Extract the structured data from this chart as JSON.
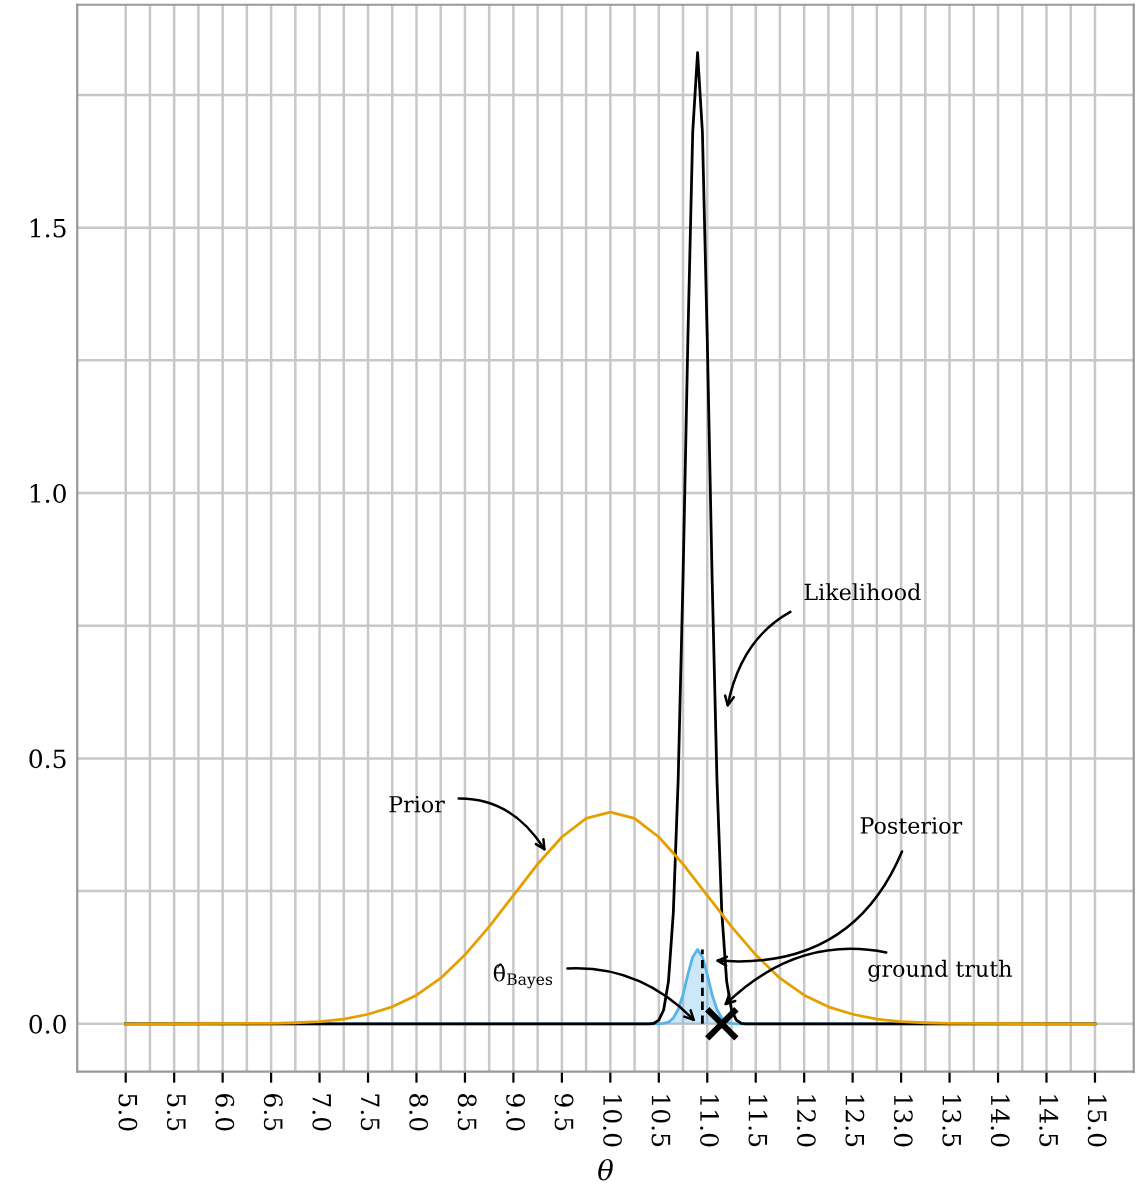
{
  "chart_data": {
    "type": "line",
    "xlabel": "θ",
    "xlim": [
      4.5,
      15.4
    ],
    "ylim": [
      -0.09,
      1.92
    ],
    "xticks": [
      {
        "value": 5,
        "label": "5.0"
      },
      {
        "value": 5.25,
        "label": null
      },
      {
        "value": 5.5,
        "label": "5.5"
      },
      {
        "value": 5.75,
        "label": null
      },
      {
        "value": 6,
        "label": "6.0"
      },
      {
        "value": 6.25,
        "label": null
      },
      {
        "value": 6.5,
        "label": "6.5"
      },
      {
        "value": 6.75,
        "label": null
      },
      {
        "value": 7,
        "label": "7.0"
      },
      {
        "value": 7.25,
        "label": null
      },
      {
        "value": 7.5,
        "label": "7.5"
      },
      {
        "value": 7.75,
        "label": null
      },
      {
        "value": 8,
        "label": "8.0"
      },
      {
        "value": 8.25,
        "label": null
      },
      {
        "value": 8.5,
        "label": "8.5"
      },
      {
        "value": 8.75,
        "label": null
      },
      {
        "value": 9,
        "label": "9.0"
      },
      {
        "value": 9.25,
        "label": null
      },
      {
        "value": 9.5,
        "label": "9.5"
      },
      {
        "value": 9.75,
        "label": null
      },
      {
        "value": 10,
        "label": "10.0"
      },
      {
        "value": 10.25,
        "label": null
      },
      {
        "value": 10.5,
        "label": "10.5"
      },
      {
        "value": 10.75,
        "label": null
      },
      {
        "value": 11,
        "label": "11.0"
      },
      {
        "value": 11.25,
        "label": null
      },
      {
        "value": 11.5,
        "label": "11.5"
      },
      {
        "value": 11.75,
        "label": null
      },
      {
        "value": 12,
        "label": "12.0"
      },
      {
        "value": 12.25,
        "label": null
      },
      {
        "value": 12.5,
        "label": "12.5"
      },
      {
        "value": 12.75,
        "label": null
      },
      {
        "value": 13,
        "label": "13.0"
      },
      {
        "value": 13.25,
        "label": null
      },
      {
        "value": 13.5,
        "label": "13.5"
      },
      {
        "value": 13.75,
        "label": null
      },
      {
        "value": 14,
        "label": "14.0"
      },
      {
        "value": 14.25,
        "label": null
      },
      {
        "value": 14.5,
        "label": "14.5"
      },
      {
        "value": 14.75,
        "label": null
      },
      {
        "value": 15,
        "label": "15.0"
      }
    ],
    "yticks": [
      {
        "value": 0,
        "label": "0.0"
      },
      {
        "value": 0.25,
        "label": null
      },
      {
        "value": 0.5,
        "label": "0.5"
      },
      {
        "value": 0.75,
        "label": null
      },
      {
        "value": 1,
        "label": "1.0"
      },
      {
        "value": 1.25,
        "label": null
      },
      {
        "value": 1.5,
        "label": "1.5"
      },
      {
        "value": 1.75,
        "label": null
      }
    ],
    "grid": true,
    "legend": false,
    "series": [
      {
        "color": "#e69f00",
        "x": [
          5,
          6.5,
          6.75,
          7,
          7.25,
          7.5,
          7.75,
          8,
          8.25,
          8.5,
          8.75,
          9,
          9.25,
          9.5,
          9.75,
          10,
          10.25,
          10.5,
          10.75,
          11,
          11.25,
          11.5,
          11.75,
          12,
          12.25,
          12.5,
          12.75,
          13,
          13.25,
          13.5,
          15
        ],
        "values": [
          0,
          0.001,
          0.002,
          0.004,
          0.009,
          0.018,
          0.032,
          0.054,
          0.086,
          0.13,
          0.183,
          0.242,
          0.301,
          0.352,
          0.387,
          0.399,
          0.387,
          0.352,
          0.301,
          0.242,
          0.183,
          0.13,
          0.086,
          0.054,
          0.032,
          0.018,
          0.009,
          0.004,
          0.002,
          0.001,
          0
        ]
      },
      {
        "type": "area",
        "color": "#56b4e9",
        "x": [
          5,
          10.5,
          10.55,
          10.6,
          10.65,
          10.7,
          10.75,
          10.8,
          10.85,
          10.9,
          10.95,
          11,
          11.05,
          11.1,
          11.15,
          11.2,
          11.25,
          11.3,
          15
        ],
        "values": [
          0,
          0,
          0.001,
          0.003,
          0.011,
          0.027,
          0.055,
          0.093,
          0.126,
          0.14,
          0.126,
          0.093,
          0.055,
          0.027,
          0.011,
          0.003,
          0.001,
          0,
          0
        ]
      },
      {
        "color": "#000000",
        "x": [
          5,
          10.4,
          10.45,
          10.5,
          10.55,
          10.6,
          10.65,
          10.7,
          10.75,
          10.8,
          10.85,
          10.9,
          10.95,
          11,
          11.05,
          11.1,
          11.15,
          11.2,
          11.25,
          11.3,
          11.35,
          11.4,
          15
        ],
        "values": [
          0,
          0,
          0.001,
          0.007,
          0.026,
          0.08,
          0.21,
          0.46,
          0.84,
          1.29,
          1.68,
          1.83,
          1.68,
          1.29,
          0.84,
          0.46,
          0.21,
          0.08,
          0.026,
          0.007,
          0.001,
          0,
          0
        ]
      },
      {
        "color": "#000000",
        "line_style": "dashed",
        "x": [
          10.95,
          10.95
        ],
        "values": [
          0,
          0.14
        ]
      },
      {
        "type": "scatter",
        "color": "#000000",
        "marker": "cross",
        "x": [
          11.15
        ],
        "values": [
          0
        ]
      }
    ],
    "annotations": [
      {
        "text": "Likelihood",
        "x": 11.2,
        "y": 0.59
      },
      {
        "text": "Prior",
        "x": 9.35,
        "y": 0.32
      },
      {
        "text": "Posterior",
        "x": 11.05,
        "y": 0.12
      },
      {
        "text": "ground truth",
        "x": 11.15,
        "y": 0.03
      },
      {
        "text": "θ̂$_{Bayes}$",
        "x": 10.9,
        "y": 0.0
      }
    ]
  }
}
